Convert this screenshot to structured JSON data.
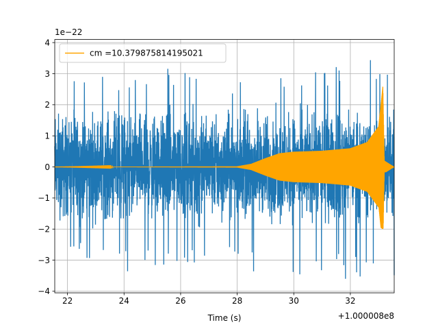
{
  "chart_data": {
    "type": "line",
    "title": "",
    "xlabel": "Time (s)",
    "ylabel": "",
    "x_offset_label": "+1.000008e8",
    "y_scale_label": "1e−22",
    "xlim": [
      21.55,
      33.55
    ],
    "ylim": [
      -4.05,
      4.1
    ],
    "x_ticks": [
      22,
      24,
      26,
      28,
      30,
      32
    ],
    "y_ticks": [
      -4,
      -3,
      -2,
      -1,
      0,
      1,
      2,
      3,
      4
    ],
    "x_tick_labels": [
      "22",
      "24",
      "26",
      "28",
      "30",
      "32"
    ],
    "y_tick_labels": [
      "−4",
      "−3",
      "−2",
      "−1",
      "0",
      "1",
      "2",
      "3",
      "4"
    ],
    "grid": true,
    "legend_position": "top-left",
    "series": [
      {
        "color": "#1f77b4",
        "kind": "noise",
        "x_start": 21.55,
        "x_end": 33.55,
        "envelope_positive": [
          [
            21.55,
            2.6
          ],
          [
            24.6,
            3.4
          ],
          [
            27.8,
            3.1
          ],
          [
            33.1,
            3.6
          ]
        ],
        "envelope_negative": [
          [
            21.55,
            -2.8
          ],
          [
            23.4,
            -3.6
          ],
          [
            26.8,
            -3.3
          ],
          [
            33.2,
            -3.7
          ]
        ]
      },
      {
        "name": "cm =10.379875814195021",
        "color": "#ffa500",
        "kind": "chirp",
        "envelope": [
          [
            21.55,
            0.0
          ],
          [
            28.0,
            0.02
          ],
          [
            28.5,
            0.1
          ],
          [
            29.0,
            0.28
          ],
          [
            29.5,
            0.44
          ],
          [
            30.0,
            0.49
          ],
          [
            31.0,
            0.52
          ],
          [
            32.0,
            0.6
          ],
          [
            32.6,
            0.8
          ],
          [
            33.0,
            1.3
          ],
          [
            33.15,
            2.6
          ],
          [
            33.2,
            0.2
          ],
          [
            33.55,
            0.0
          ]
        ],
        "envelope_negative_peak": -2.0
      }
    ]
  }
}
